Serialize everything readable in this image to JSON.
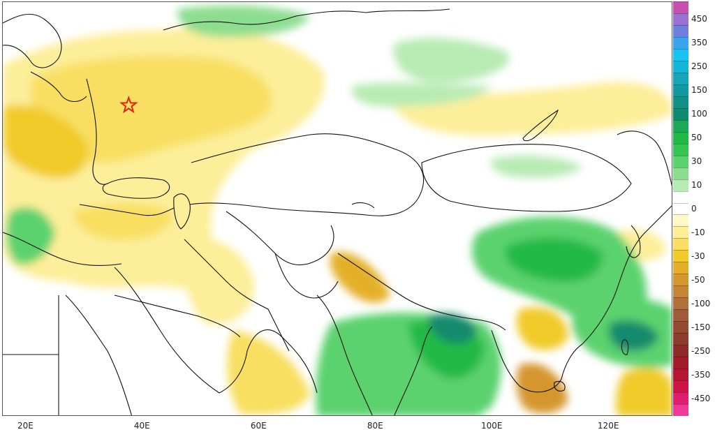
{
  "map": {
    "x_axis_ticks": [
      {
        "label": "20E",
        "lon": 20
      },
      {
        "label": "40E",
        "lon": 40
      },
      {
        "label": "60E",
        "lon": 60
      },
      {
        "label": "80E",
        "lon": 80
      },
      {
        "label": "100E",
        "lon": 100
      },
      {
        "label": "120E",
        "lon": 120
      }
    ],
    "lon_range": [
      16,
      131
    ],
    "marker": {
      "type": "star",
      "lon": 37.6,
      "lat": 55.8,
      "color": "#e0201b"
    }
  },
  "colorbar": {
    "levels": [
      {
        "label": "",
        "color": "#c850b0"
      },
      {
        "label": "450",
        "color": "#9a70d0"
      },
      {
        "label": "",
        "color": "#6f7fe0"
      },
      {
        "label": "350",
        "color": "#3ba4ee"
      },
      {
        "label": "",
        "color": "#18c3f2"
      },
      {
        "label": "250",
        "color": "#12b5d6"
      },
      {
        "label": "",
        "color": "#13a6b8"
      },
      {
        "label": "150",
        "color": "#109a9e"
      },
      {
        "label": "",
        "color": "#0f9185"
      },
      {
        "label": "100",
        "color": "#128a6d"
      },
      {
        "label": "",
        "color": "#1aa85a"
      },
      {
        "label": "50",
        "color": "#20b946"
      },
      {
        "label": "",
        "color": "#35c552"
      },
      {
        "label": "30",
        "color": "#5cd26e"
      },
      {
        "label": "",
        "color": "#8ddd90"
      },
      {
        "label": "10",
        "color": "#b8ebb4"
      },
      {
        "label": "",
        "color": "#ffffff"
      },
      {
        "label": "0",
        "color": "#ffffff"
      },
      {
        "label": "",
        "color": "#fff8c8"
      },
      {
        "label": "-10",
        "color": "#fdee9a"
      },
      {
        "label": "",
        "color": "#f8df62"
      },
      {
        "label": "-30",
        "color": "#f1cb2c"
      },
      {
        "label": "",
        "color": "#e4b02a"
      },
      {
        "label": "-50",
        "color": "#d5962e"
      },
      {
        "label": "",
        "color": "#c48536"
      },
      {
        "label": "-100",
        "color": "#b2703a"
      },
      {
        "label": "",
        "color": "#a05c38"
      },
      {
        "label": "-150",
        "color": "#934a30"
      },
      {
        "label": "",
        "color": "#8c3c2c"
      },
      {
        "label": "-250",
        "color": "#8e2a2a"
      },
      {
        "label": "",
        "color": "#a01c2c"
      },
      {
        "label": "-350",
        "color": "#b51632"
      },
      {
        "label": "",
        "color": "#cd1446"
      },
      {
        "label": "-450",
        "color": "#e01d6e"
      },
      {
        "label": "",
        "color": "#ee3a96"
      }
    ]
  }
}
